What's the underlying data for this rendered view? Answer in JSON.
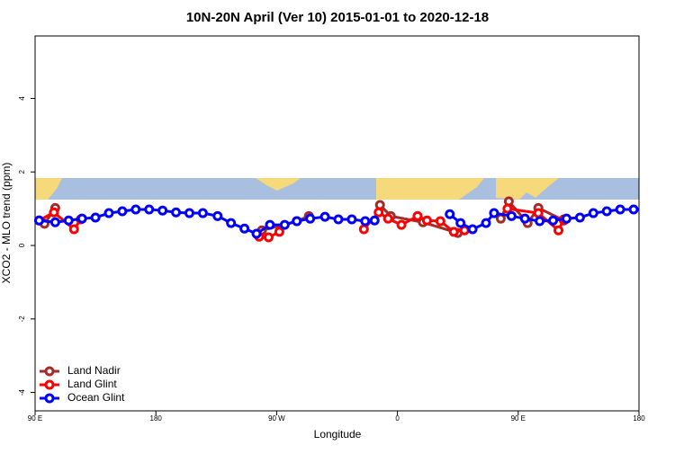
{
  "chart_data": {
    "type": "line",
    "title": "10N-20N April (Ver 10)   2015-01-01 to 2020-12-18",
    "x_label": "Longitude",
    "y_label": "XCO2 - MLO trend (ppm)",
    "xlim": [
      90,
      540
    ],
    "xticks": [
      {
        "value": 90,
        "label": "90 E"
      },
      {
        "value": 180,
        "label": "180"
      },
      {
        "value": 270,
        "label": "90 W"
      },
      {
        "value": 360,
        "label": "0"
      },
      {
        "value": 450,
        "label": "90 E"
      },
      {
        "value": 540,
        "label": "180"
      }
    ],
    "ylim": [
      -4.5,
      5.7
    ],
    "yticks": [
      -4,
      -2,
      0,
      2,
      4
    ],
    "legend": "bottom-left",
    "series": [
      {
        "name": "Land Nadir",
        "color": "#a52a2a",
        "x": [
          97,
          105,
          null,
          259,
          285,
          294,
          null,
          347,
          355,
          379,
          405,
          null,
          437,
          443,
          457,
          465,
          484
        ],
        "values": [
          0.59,
          1.02,
          null,
          0.41,
          0.66,
          0.8,
          null,
          1.1,
          0.8,
          0.63,
          0.34,
          null,
          0.73,
          1.2,
          0.61,
          1.02,
          0.68
        ]
      },
      {
        "name": "Land Glint",
        "color": "#ff0000",
        "x": [
          93,
          104,
          119,
          124,
          null,
          257,
          264,
          272,
          null,
          335,
          346,
          353,
          363,
          375,
          382,
          392,
          402,
          410,
          null,
          442,
          465,
          480,
          484
        ],
        "values": [
          0.68,
          0.9,
          0.44,
          0.71,
          null,
          0.24,
          0.22,
          0.37,
          null,
          0.44,
          0.9,
          0.73,
          0.56,
          0.8,
          0.68,
          0.66,
          0.37,
          0.41,
          null,
          1.0,
          0.88,
          0.41,
          0.71
        ]
      },
      {
        "name": "Ocean Glint",
        "color": "#0000ff",
        "x": [
          93,
          105,
          115,
          125,
          135,
          145,
          155,
          165,
          175,
          185,
          195,
          205,
          215,
          226,
          236,
          246,
          255,
          265,
          276,
          285,
          295,
          306,
          316,
          326,
          336,
          343,
          null,
          399,
          407,
          416,
          426,
          432,
          445,
          455,
          466,
          476,
          486,
          496,
          506,
          516,
          526,
          536
        ],
        "values": [
          0.68,
          0.63,
          0.68,
          0.73,
          0.76,
          0.88,
          0.93,
          0.98,
          0.98,
          0.95,
          0.9,
          0.88,
          0.88,
          0.8,
          0.61,
          0.46,
          0.32,
          0.56,
          0.56,
          0.66,
          0.73,
          0.78,
          0.71,
          0.71,
          0.66,
          0.68,
          null,
          0.85,
          0.61,
          0.44,
          0.61,
          0.88,
          0.8,
          0.73,
          0.66,
          0.68,
          0.73,
          0.76,
          0.88,
          0.93,
          0.98,
          0.98
        ]
      }
    ]
  }
}
